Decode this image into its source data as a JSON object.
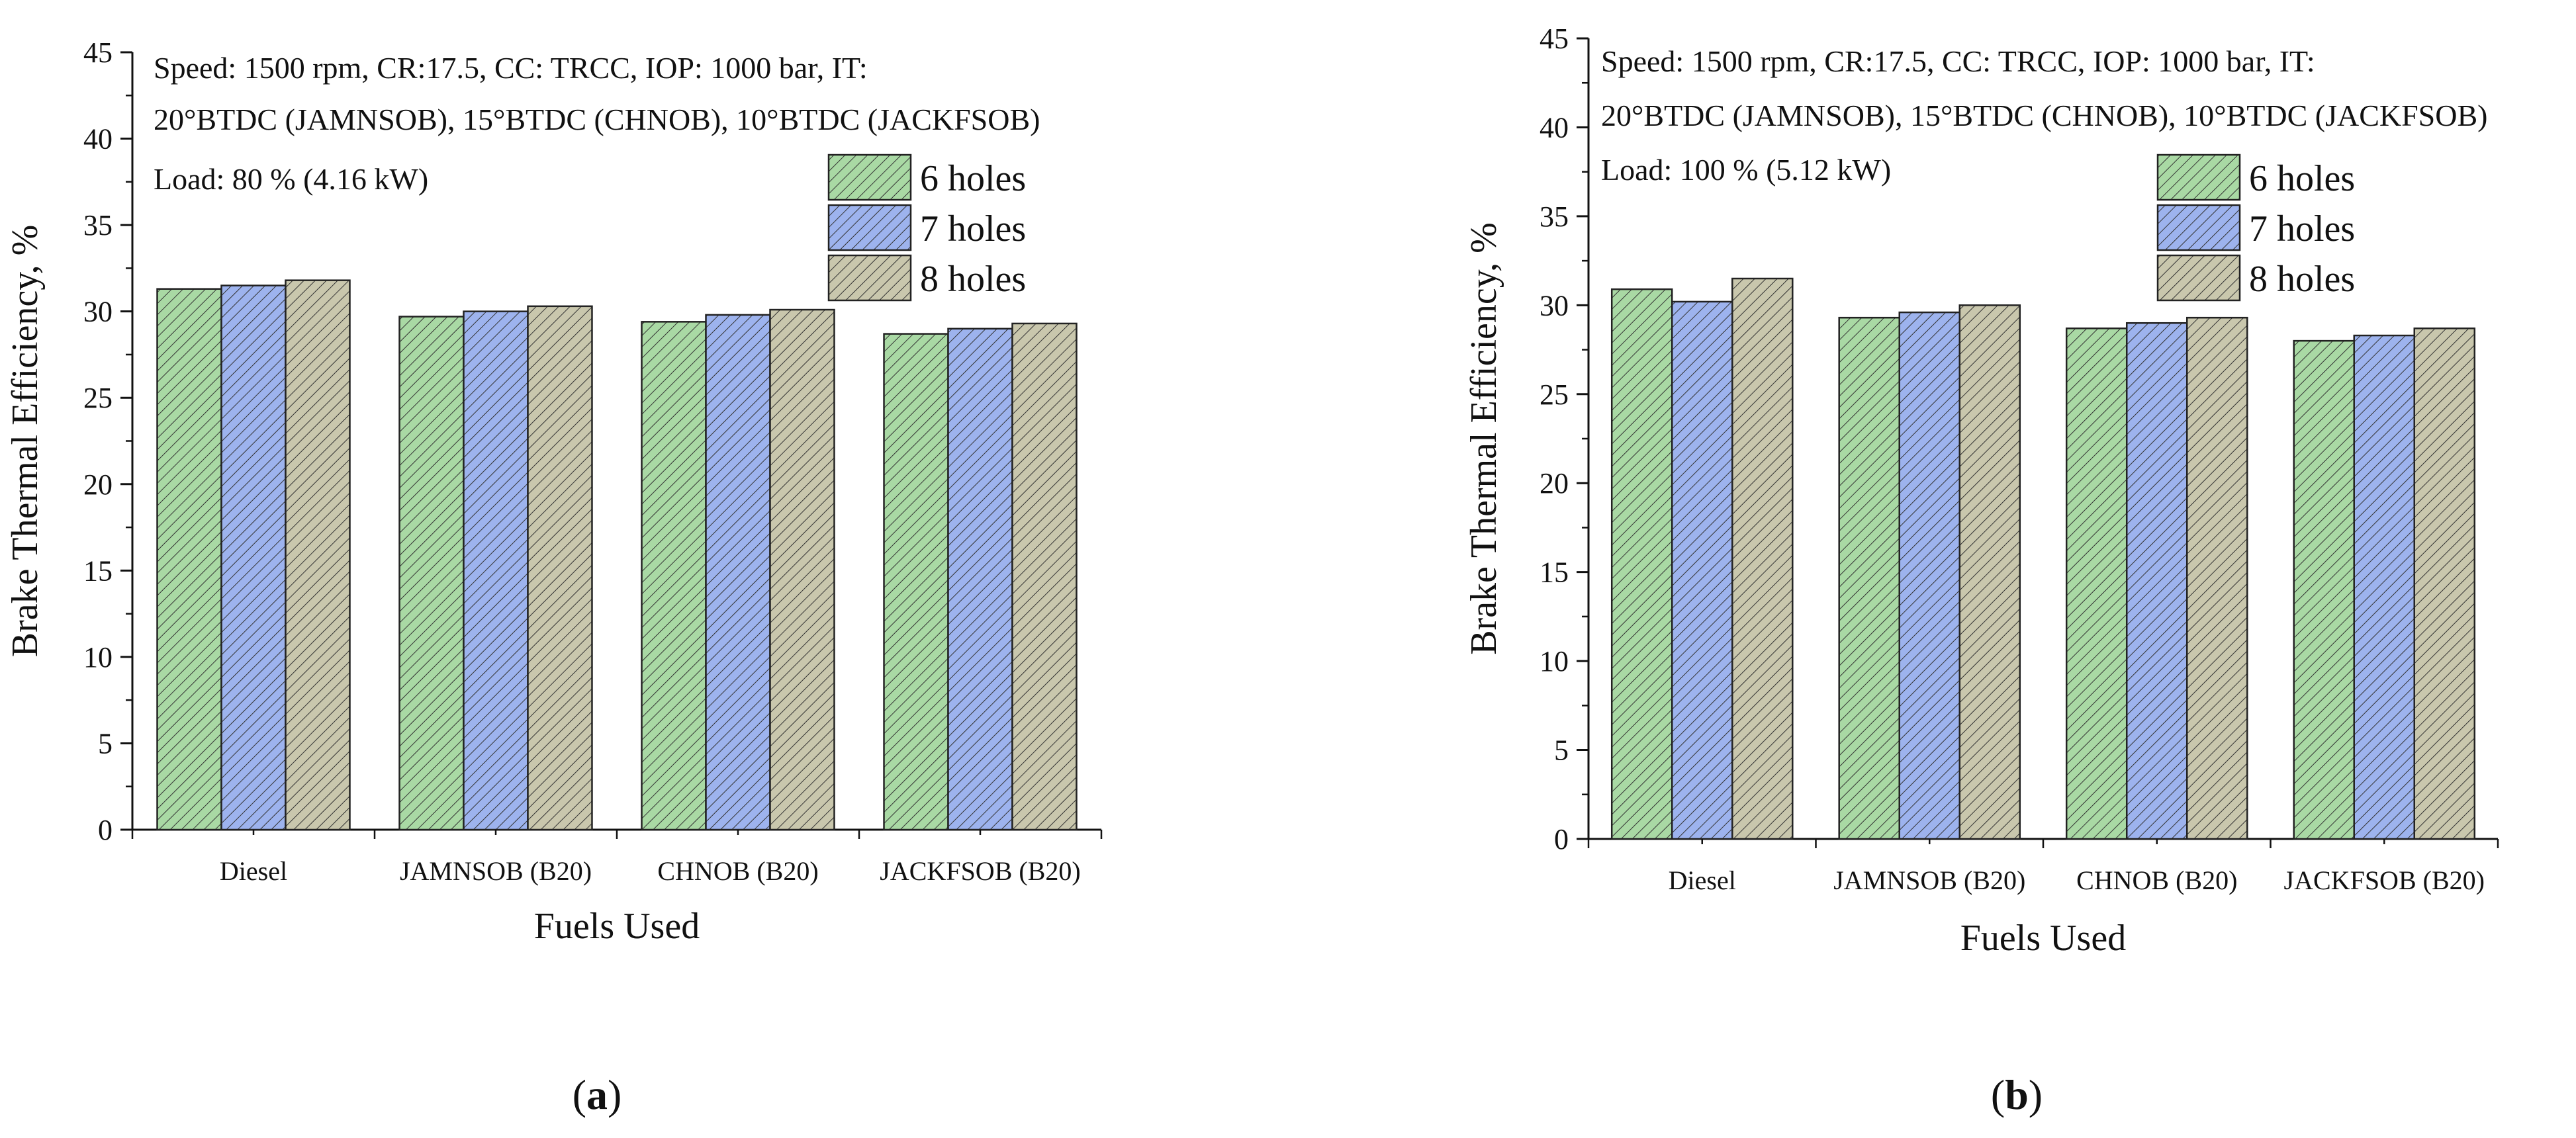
{
  "figure": {
    "panels": [
      {
        "caption_label": "a",
        "annotation_lines": [
          "Speed: 1500 rpm, CR:17.5, CC: TRCC, IOP: 1000 bar, IT:",
          "20°BTDC (JAMNSOB), 15°BTDC (CHNOB), 10°BTDC (JACKFSOB)",
          "Load: 80 %  (4.16 kW)"
        ]
      },
      {
        "caption_label": "b",
        "annotation_lines": [
          "Speed: 1500 rpm, CR:17.5, CC: TRCC, IOP: 1000 bar, IT:",
          "20°BTDC (JAMNSOB), 15°BTDC (CHNOB), 10°BTDC (JACKFSOB)",
          "Load: 100 %  (5.12 kW)"
        ]
      }
    ]
  },
  "colors": {
    "series": [
      "#a9d9a4",
      "#9db3ee",
      "#c9c7ad"
    ],
    "hatch": "#333333",
    "axis": "#111111"
  },
  "chart_data": [
    {
      "type": "bar",
      "title": "",
      "xlabel": "Fuels Used",
      "ylabel": "Brake Thermal Efficiency, %",
      "categories": [
        "Diesel",
        "JAMNSOB (B20)",
        "CHNOB (B20)",
        "JACKFSOB (B20)"
      ],
      "series": [
        {
          "name": "6 holes",
          "values": [
            31.3,
            29.7,
            29.4,
            28.7
          ]
        },
        {
          "name": "7 holes",
          "values": [
            31.5,
            30.0,
            29.8,
            29.0
          ]
        },
        {
          "name": "8 holes",
          "values": [
            31.8,
            30.3,
            30.1,
            29.3
          ]
        }
      ],
      "ylim": [
        0,
        45
      ],
      "yticks": [
        0,
        5,
        10,
        15,
        20,
        25,
        30,
        35,
        40,
        45
      ],
      "legend": "upper right",
      "grid": false
    },
    {
      "type": "bar",
      "title": "",
      "xlabel": "Fuels Used",
      "ylabel": "Brake Thermal Efficiency, %",
      "categories": [
        "Diesel",
        "JAMNSOB (B20)",
        "CHNOB (B20)",
        "JACKFSOB (B20)"
      ],
      "series": [
        {
          "name": "6 holes",
          "values": [
            30.9,
            29.3,
            28.7,
            28.0
          ]
        },
        {
          "name": "7 holes",
          "values": [
            30.2,
            29.6,
            29.0,
            28.3
          ]
        },
        {
          "name": "8 holes",
          "values": [
            31.5,
            30.0,
            29.3,
            28.7
          ]
        }
      ],
      "ylim": [
        0,
        45
      ],
      "yticks": [
        0,
        5,
        10,
        15,
        20,
        25,
        30,
        35,
        40,
        45
      ],
      "legend": "upper right",
      "grid": false
    }
  ]
}
